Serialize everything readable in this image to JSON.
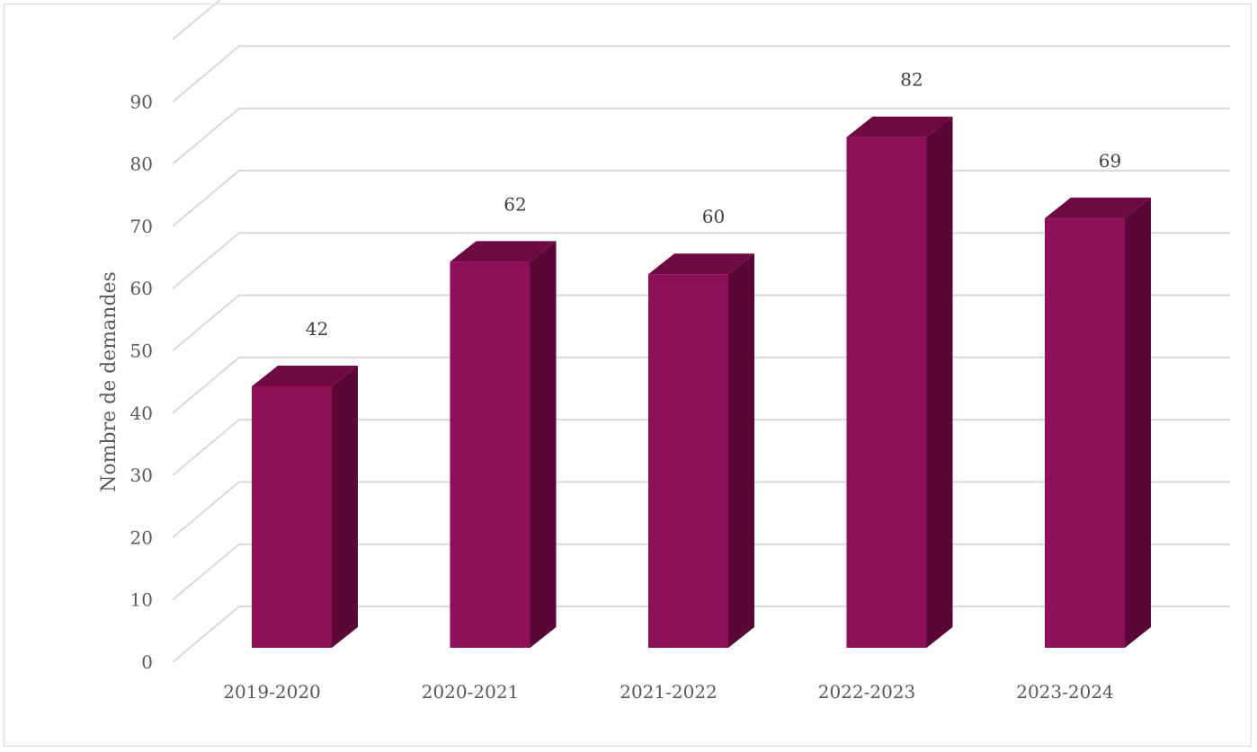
{
  "chart_data": {
    "type": "bar",
    "title": "",
    "xlabel": "",
    "ylabel": "Nombre de demandes",
    "categories": [
      "2019-2020",
      "2020-2021",
      "2021-2022",
      "2022-2023",
      "2023-2024"
    ],
    "values": [
      42,
      62,
      60,
      82,
      69
    ],
    "ylim": [
      0,
      90
    ],
    "yticks": [
      0,
      10,
      20,
      30,
      40,
      50,
      60,
      70,
      80,
      90
    ],
    "grid": true,
    "legend": "none",
    "style": "3d",
    "colors": {
      "front": "#8e0e57",
      "side": "#5a0637",
      "top": "#6e0944"
    }
  }
}
